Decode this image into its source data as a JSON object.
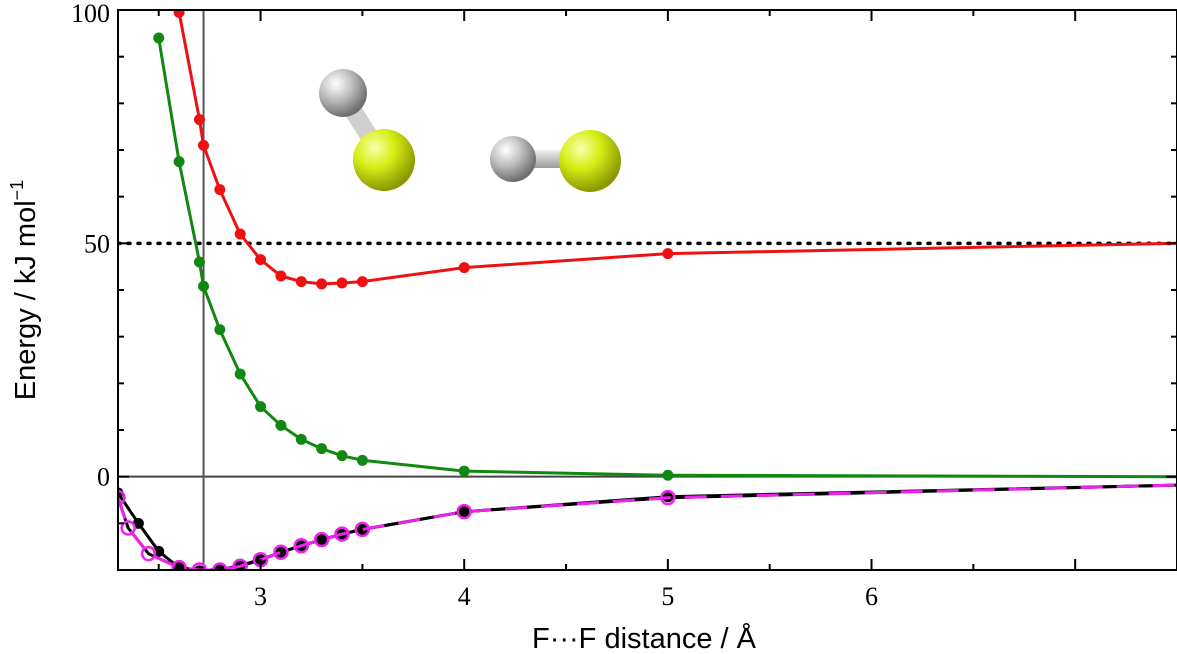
{
  "chart_data": {
    "type": "line",
    "xlabel": "F···F distance / Å",
    "ylabel_main": "Energy / kJ mol",
    "ylabel_sup": "−1",
    "xlim": [
      2.3,
      7.5
    ],
    "ylim": [
      -20,
      100
    ],
    "x_ticks": [
      3,
      4,
      5,
      6
    ],
    "x_tick_labels": [
      "3",
      "4",
      "5",
      "6"
    ],
    "y_ticks": [
      0,
      50,
      100
    ],
    "y_tick_labels": [
      "0",
      "50",
      "100"
    ],
    "reference_lines": {
      "vertical_x": 2.72,
      "horizontal_zero": 0,
      "dotted_y": 50
    },
    "molecule_inset": {
      "description_colors": {
        "hydrogen": "#bdbdbd",
        "fluorine": "#d7ee16"
      }
    },
    "series": [
      {
        "color": "#ee1111",
        "marker": "filled-circle",
        "x": [
          2.6,
          2.7,
          2.72,
          2.8,
          2.9,
          3.0,
          3.1,
          3.2,
          3.3,
          3.4,
          3.5,
          4.0,
          5.0,
          7.5
        ],
        "y": [
          99.5,
          76.5,
          71.0,
          61.5,
          52.0,
          46.5,
          43.0,
          41.8,
          41.3,
          41.5,
          41.8,
          44.8,
          47.8,
          50.0
        ],
        "markers_at": [
          0,
          1,
          2,
          3,
          4,
          5,
          6,
          7,
          8,
          9,
          10,
          11,
          12
        ]
      },
      {
        "color": "#118811",
        "marker": "filled-circle",
        "x": [
          2.5,
          2.6,
          2.7,
          2.72,
          2.8,
          2.9,
          3.0,
          3.1,
          3.2,
          3.3,
          3.4,
          3.5,
          4.0,
          5.0,
          7.5
        ],
        "y": [
          94.0,
          67.5,
          46.0,
          40.8,
          31.5,
          22.0,
          15.0,
          11.0,
          8.0,
          6.0,
          4.5,
          3.5,
          1.2,
          0.3,
          0.0
        ],
        "markers_at": [
          0,
          1,
          2,
          3,
          4,
          5,
          6,
          7,
          8,
          9,
          10,
          11,
          12,
          13
        ]
      },
      {
        "color": "#000000",
        "marker": "filled-circle",
        "x": [
          2.3,
          2.4,
          2.5,
          2.6,
          2.7,
          2.8,
          2.9,
          3.0,
          3.1,
          3.2,
          3.3,
          3.4,
          3.5,
          4.0,
          5.0,
          7.5
        ],
        "y": [
          -3.5,
          -10.0,
          -16.0,
          -19.5,
          -20.2,
          -20.0,
          -19.0,
          -17.8,
          -16.2,
          -14.8,
          -13.5,
          -12.3,
          -11.3,
          -7.5,
          -4.3,
          -1.8
        ],
        "markers_at": [
          0,
          1,
          2,
          3,
          4,
          5,
          6,
          7,
          8,
          9,
          10,
          11,
          12,
          13,
          14
        ]
      },
      {
        "color": "#ee22ee",
        "marker": "open-circle",
        "dashed": true,
        "x": [
          2.3,
          2.35,
          2.45,
          2.6,
          2.7,
          2.8,
          2.9,
          3.0,
          3.1,
          3.2,
          3.3,
          3.4,
          3.5,
          4.0,
          5.0,
          7.5
        ],
        "y": [
          -4.5,
          -11.0,
          -16.5,
          -19.5,
          -20.0,
          -20.0,
          -19.2,
          -17.8,
          -16.2,
          -14.8,
          -13.5,
          -12.3,
          -11.3,
          -7.5,
          -4.5,
          -1.8
        ],
        "markers_at": [
          0,
          1,
          2,
          3,
          4,
          5,
          6,
          7,
          8,
          9,
          10,
          11,
          12,
          13,
          14
        ]
      }
    ]
  }
}
